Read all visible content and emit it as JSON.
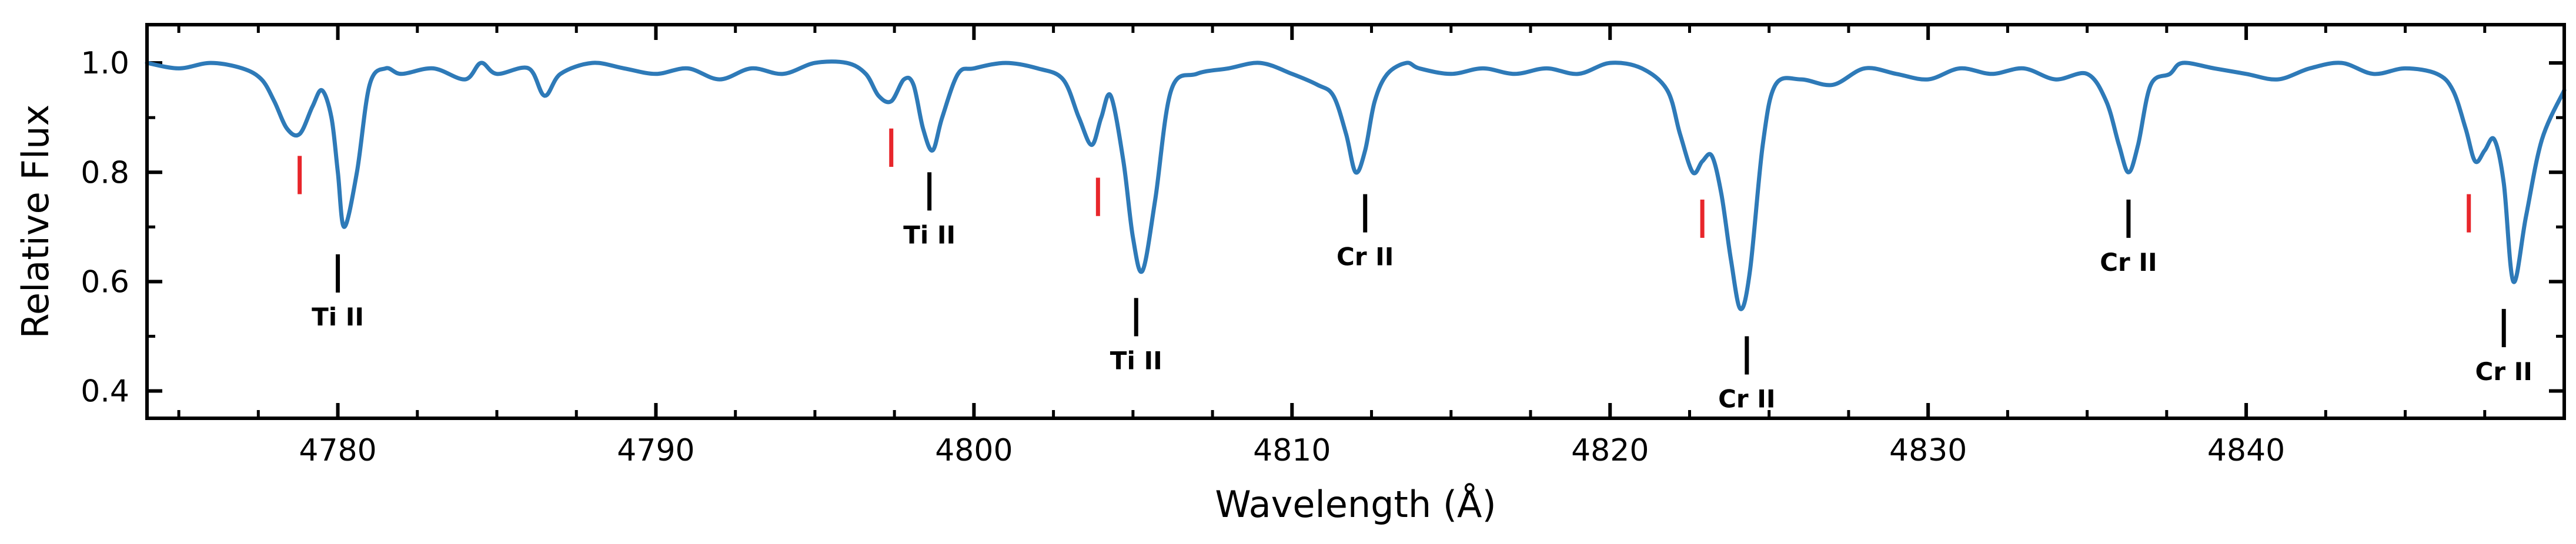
{
  "chart_data": {
    "type": "line",
    "xlabel": "Wavelength (Å)",
    "ylabel": "Relative Flux",
    "xlim": [
      4774,
      4850
    ],
    "ylim": [
      0.35,
      1.07
    ],
    "x_ticks": [
      4780,
      4790,
      4800,
      4810,
      4820,
      4830,
      4840
    ],
    "y_ticks": [
      0.4,
      0.6,
      0.8,
      1.0
    ],
    "x_tick_labels": [
      "4780",
      "4790",
      "4800",
      "4810",
      "4820",
      "4830",
      "4840"
    ],
    "y_tick_labels": [
      "0.4",
      "0.6",
      "0.8",
      "1.0"
    ],
    "grid": false,
    "line_color": "#2e7ab8",
    "secondary_marker_color": "#e8262b",
    "series": [
      {
        "x": [
          4774,
          4775,
          4776,
          4777,
          4777.6,
          4778,
          4778.4,
          4778.8,
          4779.2,
          4779.5,
          4779.8,
          4780,
          4780.2,
          4780.6,
          4781,
          4781.5,
          4782,
          4783,
          4784,
          4784.5,
          4785,
          4786,
          4786.5,
          4787,
          4788,
          4789,
          4790,
          4791,
          4792,
          4793,
          4794,
          4795,
          4796,
          4796.6,
          4797,
          4797.4,
          4797.8,
          4798.1,
          4798.4,
          4798.7,
          4799,
          4799.5,
          4800,
          4801,
          4802,
          4802.8,
          4803.3,
          4803.7,
          4804,
          4804.3,
          4804.7,
          4805,
          4805.3,
          4805.7,
          4806.2,
          4807,
          4808,
          4809,
          4810,
          4810.8,
          4811.3,
          4811.7,
          4812,
          4812.3,
          4812.6,
          4813,
          4813.6,
          4814,
          4815,
          4816,
          4817,
          4818,
          4819,
          4820,
          4821,
          4821.8,
          4822.2,
          4822.6,
          4822.9,
          4823.2,
          4823.5,
          4823.8,
          4824.1,
          4824.4,
          4824.8,
          4825.2,
          4826,
          4827,
          4828,
          4829,
          4830,
          4831,
          4832,
          4833,
          4834,
          4835,
          4835.6,
          4836,
          4836.3,
          4836.6,
          4837,
          4837.6,
          4838,
          4839,
          4840,
          4841,
          4842,
          4843,
          4844,
          4845,
          4846,
          4846.5,
          4846.9,
          4847.2,
          4847.5,
          4847.8,
          4848.1,
          4848.4,
          4848.8,
          4849.3,
          4850
        ],
        "y": [
          1.0,
          0.99,
          1.0,
          0.99,
          0.97,
          0.93,
          0.88,
          0.87,
          0.92,
          0.95,
          0.9,
          0.8,
          0.7,
          0.8,
          0.96,
          0.99,
          0.98,
          0.99,
          0.97,
          1.0,
          0.98,
          0.99,
          0.94,
          0.98,
          1.0,
          0.99,
          0.98,
          0.99,
          0.97,
          0.99,
          0.98,
          1.0,
          1.0,
          0.98,
          0.94,
          0.93,
          0.97,
          0.96,
          0.88,
          0.84,
          0.9,
          0.98,
          0.99,
          1.0,
          0.99,
          0.97,
          0.9,
          0.85,
          0.9,
          0.94,
          0.82,
          0.68,
          0.62,
          0.75,
          0.95,
          0.98,
          0.99,
          1.0,
          0.98,
          0.96,
          0.94,
          0.87,
          0.8,
          0.84,
          0.93,
          0.98,
          1.0,
          0.99,
          0.98,
          0.99,
          0.98,
          0.99,
          0.98,
          1.0,
          0.99,
          0.95,
          0.87,
          0.8,
          0.82,
          0.83,
          0.76,
          0.64,
          0.55,
          0.62,
          0.85,
          0.96,
          0.97,
          0.96,
          0.99,
          0.98,
          0.97,
          0.99,
          0.98,
          0.99,
          0.97,
          0.98,
          0.93,
          0.85,
          0.8,
          0.85,
          0.96,
          0.98,
          1.0,
          0.99,
          0.98,
          0.97,
          0.99,
          1.0,
          0.98,
          0.99,
          0.98,
          0.95,
          0.88,
          0.82,
          0.84,
          0.86,
          0.78,
          0.6,
          0.72,
          0.86,
          0.95
        ]
      }
    ],
    "line_markers": [
      {
        "label": "Ti II",
        "x": 4780.0,
        "y_top": 0.65,
        "y_bottom": 0.58
      },
      {
        "label": "Ti II",
        "x": 4798.6,
        "y_top": 0.8,
        "y_bottom": 0.73
      },
      {
        "label": "Ti II",
        "x": 4805.1,
        "y_top": 0.57,
        "y_bottom": 0.5
      },
      {
        "label": "Cr II",
        "x": 4812.3,
        "y_top": 0.76,
        "y_bottom": 0.69
      },
      {
        "label": "Cr II",
        "x": 4824.3,
        "y_top": 0.5,
        "y_bottom": 0.43
      },
      {
        "label": "Cr II",
        "x": 4836.3,
        "y_top": 0.75,
        "y_bottom": 0.68
      },
      {
        "label": "Cr II",
        "x": 4848.1,
        "y_top": 0.55,
        "y_bottom": 0.48
      }
    ],
    "secondary_markers": [
      {
        "x": 4778.8,
        "y_top": 0.83,
        "y_bottom": 0.76
      },
      {
        "x": 4797.4,
        "y_top": 0.88,
        "y_bottom": 0.81
      },
      {
        "x": 4803.9,
        "y_top": 0.79,
        "y_bottom": 0.72
      },
      {
        "x": 4822.9,
        "y_top": 0.75,
        "y_bottom": 0.68
      },
      {
        "x": 4847.0,
        "y_top": 0.76,
        "y_bottom": 0.69
      }
    ]
  }
}
